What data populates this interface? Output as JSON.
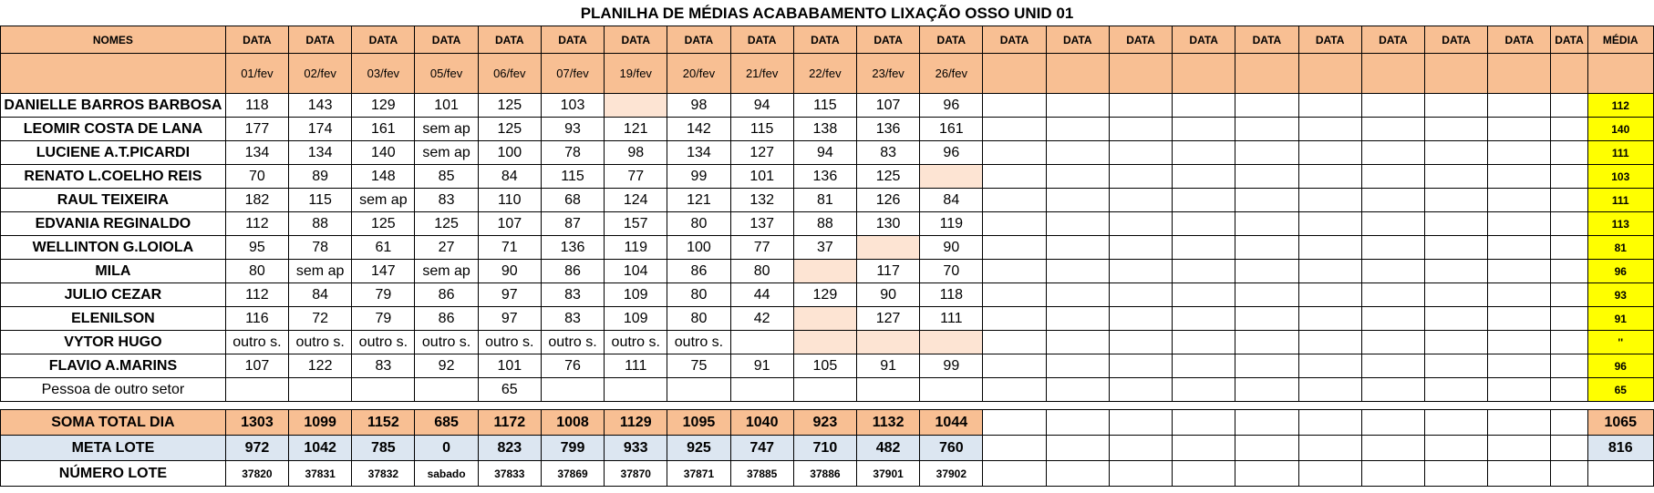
{
  "title": "PLANILHA DE MÉDIAS ACABABAMENTO LIXAÇÃO OSSO UNID 01",
  "header": {
    "nomes": "NOMES",
    "data_label": "DATA",
    "media": "MÉDIA",
    "dates": [
      "01/fev",
      "02/fev",
      "03/fev",
      "05/fev",
      "06/fev",
      "07/fev",
      "19/fev",
      "20/fev",
      "21/fev",
      "22/fev",
      "23/fev",
      "26/fev",
      "",
      "",
      "",
      "",
      "",
      "",
      "",
      "",
      "",
      ""
    ]
  },
  "rows": [
    {
      "name": "DANIELLE BARROS BARBOSA",
      "values": [
        "118",
        "143",
        "129",
        "101",
        "125",
        "103",
        "",
        "98",
        "94",
        "115",
        "107",
        "96"
      ],
      "peach": [
        6
      ],
      "media": "112"
    },
    {
      "name": "LEOMIR COSTA DE LANA",
      "values": [
        "177",
        "174",
        "161",
        "sem ap",
        "125",
        "93",
        "121",
        "142",
        "115",
        "138",
        "136",
        "161"
      ],
      "peach": [],
      "media": "140"
    },
    {
      "name": "LUCIENE A.T.PICARDI",
      "values": [
        "134",
        "134",
        "140",
        "sem ap",
        "100",
        "78",
        "98",
        "134",
        "127",
        "94",
        "83",
        "96"
      ],
      "peach": [],
      "media": "111"
    },
    {
      "name": "RENATO L.COELHO REIS",
      "values": [
        "70",
        "89",
        "148",
        "85",
        "84",
        "115",
        "77",
        "99",
        "101",
        "136",
        "125",
        ""
      ],
      "peach": [
        11
      ],
      "media": "103"
    },
    {
      "name": "RAUL TEIXEIRA",
      "values": [
        "182",
        "115",
        "sem ap",
        "83",
        "110",
        "68",
        "124",
        "121",
        "132",
        "81",
        "126",
        "84"
      ],
      "peach": [],
      "media": "111"
    },
    {
      "name": "EDVANIA REGINALDO",
      "values": [
        "112",
        "88",
        "125",
        "125",
        "107",
        "87",
        "157",
        "80",
        "137",
        "88",
        "130",
        "119"
      ],
      "peach": [],
      "media": "113"
    },
    {
      "name": "WELLINTON G.LOIOLA",
      "values": [
        "95",
        "78",
        "61",
        "27",
        "71",
        "136",
        "119",
        "100",
        "77",
        "37",
        "",
        "90"
      ],
      "peach": [
        10
      ],
      "media": "81"
    },
    {
      "name": "MILA",
      "values": [
        "80",
        "sem ap",
        "147",
        "sem ap",
        "90",
        "86",
        "104",
        "86",
        "80",
        "",
        "117",
        "70"
      ],
      "peach": [
        9
      ],
      "media": "96"
    },
    {
      "name": "JULIO CEZAR",
      "values": [
        "112",
        "84",
        "79",
        "86",
        "97",
        "83",
        "109",
        "80",
        "44",
        "129",
        "90",
        "118"
      ],
      "peach": [],
      "media": "93"
    },
    {
      "name": "ELENILSON",
      "values": [
        "116",
        "72",
        "79",
        "86",
        "97",
        "83",
        "109",
        "80",
        "42",
        "",
        "127",
        "111"
      ],
      "peach": [
        9
      ],
      "media": "91"
    },
    {
      "name": "VYTOR HUGO",
      "values": [
        "outro s.",
        "outro s.",
        "outro s.",
        "outro s.",
        "outro s.",
        "outro s.",
        "outro s.",
        "outro s.",
        "",
        "",
        "",
        ""
      ],
      "peach": [
        9,
        10,
        11
      ],
      "media": "''"
    },
    {
      "name": "FLAVIO A.MARINS",
      "values": [
        "107",
        "122",
        "83",
        "92",
        "101",
        "76",
        "111",
        "75",
        "91",
        "105",
        "91",
        "99"
      ],
      "peach": [],
      "media": "96"
    },
    {
      "name": "Pessoa de outro setor",
      "values": [
        "",
        "",
        "",
        "",
        "65",
        "",
        "",
        "",
        "",
        "",
        "",
        ""
      ],
      "peach": [],
      "media": "65",
      "plain": true
    }
  ],
  "totals": {
    "soma": {
      "label": "SOMA TOTAL DIA",
      "values": [
        "1303",
        "1099",
        "1152",
        "685",
        "1172",
        "1008",
        "1129",
        "1095",
        "1040",
        "923",
        "1132",
        "1044"
      ],
      "avg": "1065"
    },
    "meta": {
      "label": "META LOTE",
      "values": [
        "972",
        "1042",
        "785",
        "0",
        "823",
        "799",
        "933",
        "925",
        "747",
        "710",
        "482",
        "760"
      ],
      "avg": "816"
    },
    "lote": {
      "label": "NÚMERO LOTE",
      "values": [
        "37820",
        "37831",
        "37832",
        "sabado",
        "37833",
        "37869",
        "37870",
        "37871",
        "37885",
        "37886",
        "37901",
        "37902"
      ]
    }
  }
}
